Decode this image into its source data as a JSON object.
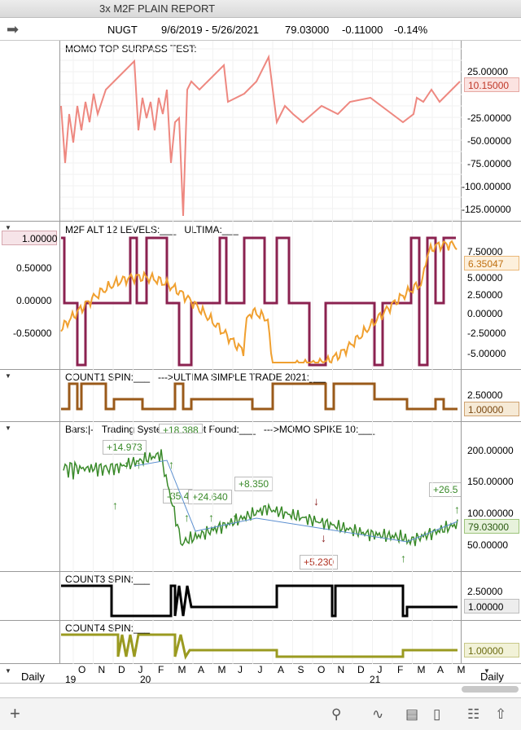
{
  "window": {
    "title": "3x M2F PLAIN REPORT"
  },
  "info": {
    "symbol": "NUGT",
    "range": "9/6/2019 - 5/26/2021",
    "last": "79.03000",
    "change": "-0.11000",
    "pct": "-0.14%"
  },
  "panels": {
    "momo": {
      "title": "MOMO TOP SURPASS TEST:",
      "value": "10.15000",
      "color": "#ee8880",
      "yticks": [
        "25.00000",
        "-25.00000",
        "-50.00000",
        "-75.00000",
        "-100.00000",
        "-125.00000"
      ]
    },
    "m2f": {
      "title1": "M2F ALT 12 LEVELS:",
      "title2": "ULTIMA:",
      "left_value": "1.00000",
      "right_value": "6.35047",
      "left_ticks": [
        "0.50000",
        "0.00000",
        "-0.50000"
      ],
      "right_ticks": [
        "7.50000",
        "5.00000",
        "2.50000",
        "0.00000",
        "-2.50000",
        "-5.00000"
      ],
      "color1": "#8b2250",
      "color2": "#f0a030"
    },
    "count1": {
      "title1": "COUNT1 SPIN:",
      "title2": "--->ULTIMA  SIMPLE TRADE 2021:",
      "ticks": [
        "2.50000"
      ],
      "value": "1.00000",
      "color": "#9a5a1a"
    },
    "bars": {
      "title1": "Bars:",
      "title2": "Trading System File Not Found:",
      "title3": "--->MOMO SPIKE 10:",
      "ticks": [
        "200.00000",
        "150.00000",
        "100.00000",
        "50.00000"
      ],
      "value": "79.03000",
      "annotations": [
        "+14.973",
        "+18.388",
        "-35.4",
        "+24.640",
        "+8.350",
        "+26.5",
        "+5.230"
      ]
    },
    "count3": {
      "title": "COUNT3 SPIN:",
      "ticks": [
        "2.50000"
      ],
      "value": "1.00000"
    },
    "count4": {
      "title": "COUNT4 SPIN:",
      "value": "1.00000",
      "color": "#9a9a20"
    }
  },
  "xaxis": {
    "left_label": "Daily",
    "right_label": "Daily",
    "months": [
      "O",
      "N",
      "D",
      "J",
      "F",
      "M",
      "A",
      "M",
      "J",
      "J",
      "A",
      "S",
      "O",
      "N",
      "D",
      "J",
      "F",
      "M",
      "A",
      "M"
    ],
    "years": [
      "19",
      "20",
      "21"
    ]
  },
  "toolbar": {
    "add_icon": "plus-icon",
    "search_icon": "search-icon",
    "chart_icon": "chart-line-icon",
    "panel_icon": "panel-icon",
    "layout_icon": "layout-icon",
    "book_icon": "book-icon",
    "share_icon": "share-icon"
  }
}
